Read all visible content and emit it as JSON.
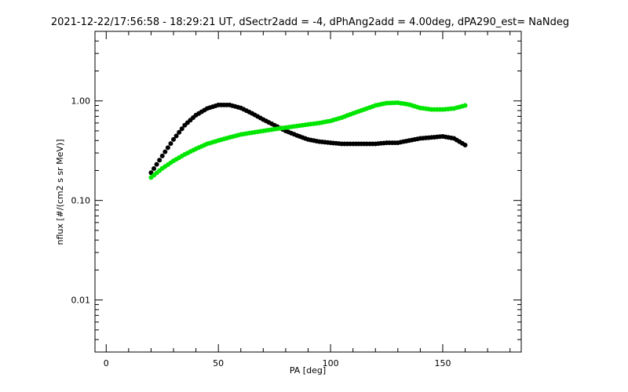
{
  "chart_data": {
    "type": "scatter",
    "title": "2021-12-22/17:56:58 - 18:29:21 UT, dSectr2add = -4, dPhAng2add = 4.00deg, dPA290_est=   NaNdeg",
    "xlabel": "PA [deg]",
    "ylabel": "nflux [#/(cm2 s sr MeV)]",
    "xlim": [
      -5,
      185
    ],
    "ylim": [
      0.003,
      5.0
    ],
    "yscale": "log",
    "x_ticks": [
      {
        "value": 0,
        "label": "0"
      },
      {
        "value": 50,
        "label": "50"
      },
      {
        "value": 100,
        "label": "100"
      },
      {
        "value": 150,
        "label": "150"
      }
    ],
    "y_ticks": [
      {
        "value": 0.01,
        "label": "0.01"
      },
      {
        "value": 0.1,
        "label": "0.10"
      },
      {
        "value": 1.0,
        "label": "1.00"
      }
    ],
    "series": [
      {
        "color": "#000000",
        "x": [
          20,
          25,
          30,
          35,
          40,
          45,
          50,
          55,
          60,
          65,
          70,
          75,
          80,
          85,
          90,
          95,
          100,
          105,
          110,
          115,
          120,
          125,
          130,
          135,
          140,
          145,
          150,
          155,
          160
        ],
        "y": [
          0.19,
          0.28,
          0.41,
          0.57,
          0.72,
          0.84,
          0.91,
          0.91,
          0.85,
          0.75,
          0.65,
          0.57,
          0.5,
          0.45,
          0.41,
          0.39,
          0.38,
          0.37,
          0.37,
          0.37,
          0.37,
          0.38,
          0.38,
          0.4,
          0.42,
          0.43,
          0.44,
          0.42,
          0.36
        ]
      },
      {
        "color": "#00e600",
        "x": [
          20,
          25,
          30,
          35,
          40,
          45,
          50,
          55,
          60,
          65,
          70,
          75,
          80,
          85,
          90,
          95,
          100,
          105,
          110,
          115,
          120,
          125,
          130,
          135,
          140,
          145,
          150,
          155,
          160
        ],
        "y": [
          0.17,
          0.21,
          0.25,
          0.29,
          0.33,
          0.37,
          0.4,
          0.43,
          0.46,
          0.48,
          0.5,
          0.52,
          0.54,
          0.56,
          0.58,
          0.6,
          0.63,
          0.68,
          0.75,
          0.82,
          0.9,
          0.95,
          0.96,
          0.92,
          0.85,
          0.82,
          0.82,
          0.84,
          0.9
        ]
      }
    ]
  }
}
